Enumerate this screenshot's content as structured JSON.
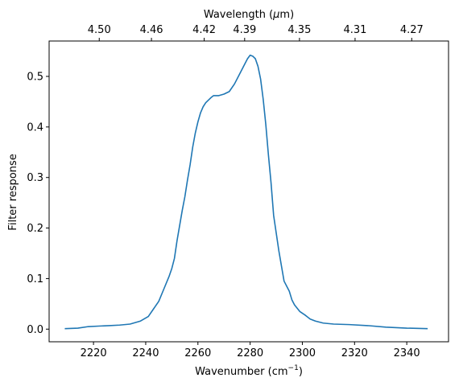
{
  "chart_data": {
    "type": "line",
    "xlabel": "Wavenumber (cm",
    "xlabel_sup": "−1",
    "xlabel_close": ")",
    "ylabel": "Filter response",
    "top_xlabel_prefix": "Wavelength (",
    "top_xlabel_mu": "μ",
    "top_xlabel_suffix": "m)",
    "xlim": [
      2203,
      2356
    ],
    "ylim": [
      -0.025,
      0.57
    ],
    "xticks": [
      2220,
      2240,
      2260,
      2280,
      2300,
      2320,
      2340
    ],
    "yticks": [
      0.0,
      0.1,
      0.2,
      0.3,
      0.4,
      0.5
    ],
    "top_ticks": [
      {
        "label": "4.50",
        "x": 2222.2
      },
      {
        "label": "4.46",
        "x": 2242.2
      },
      {
        "label": "4.42",
        "x": 2262.4
      },
      {
        "label": "4.39",
        "x": 2277.9
      },
      {
        "label": "4.35",
        "x": 2298.9
      },
      {
        "label": "4.31",
        "x": 2320.2
      },
      {
        "label": "4.27",
        "x": 2341.9
      }
    ],
    "line_color": "#1f77b4",
    "series": [
      {
        "x": [
          2209,
          2214,
          2218,
          2222,
          2226,
          2230,
          2234,
          2238,
          2241,
          2243,
          2245,
          2247,
          2249,
          2250,
          2251,
          2252,
          2253,
          2254,
          2255,
          2256,
          2257,
          2258,
          2259,
          2260,
          2261,
          2262,
          2263,
          2264,
          2265,
          2266,
          2268,
          2270,
          2272,
          2274,
          2276,
          2278,
          2279,
          2280,
          2281,
          2282,
          2283,
          2284,
          2285,
          2286,
          2287,
          2288,
          2289,
          2290,
          2291,
          2292,
          2293,
          2294,
          2295,
          2296,
          2297,
          2299,
          2301,
          2303,
          2305,
          2308,
          2312,
          2318,
          2325,
          2332,
          2340,
          2348
        ],
        "y": [
          0.001,
          0.002,
          0.005,
          0.006,
          0.007,
          0.008,
          0.01,
          0.016,
          0.025,
          0.04,
          0.055,
          0.08,
          0.105,
          0.12,
          0.14,
          0.175,
          0.205,
          0.235,
          0.262,
          0.295,
          0.325,
          0.36,
          0.388,
          0.41,
          0.428,
          0.44,
          0.448,
          0.453,
          0.458,
          0.462,
          0.462,
          0.465,
          0.47,
          0.485,
          0.505,
          0.525,
          0.535,
          0.542,
          0.54,
          0.535,
          0.52,
          0.495,
          0.455,
          0.405,
          0.345,
          0.29,
          0.225,
          0.19,
          0.155,
          0.125,
          0.095,
          0.085,
          0.075,
          0.058,
          0.048,
          0.035,
          0.028,
          0.02,
          0.016,
          0.012,
          0.01,
          0.009,
          0.007,
          0.004,
          0.002,
          0.001
        ]
      }
    ]
  }
}
